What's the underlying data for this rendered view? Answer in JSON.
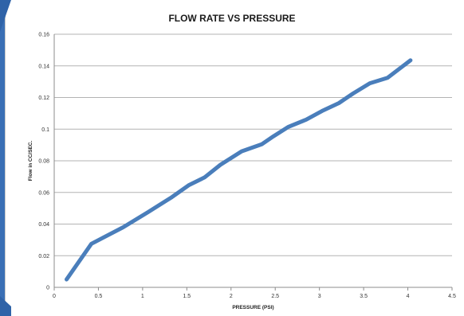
{
  "chart_data": {
    "type": "line",
    "title": "FLOW RATE VS PRESSURE",
    "xlabel": "PRESSURE (PSI)",
    "ylabel": "Flow in CC/SEC.",
    "xlim": [
      0,
      4.5
    ],
    "ylim": [
      0,
      0.16
    ],
    "xticks": [
      "0",
      "0.5",
      "1",
      "1.5",
      "2",
      "2.5",
      "3",
      "3.5",
      "4",
      "4.5"
    ],
    "yticks": [
      "0",
      "0.02",
      "0.04",
      "0.06",
      "0.08",
      "0.1",
      "0.12",
      "0.14",
      "0.16"
    ],
    "grid": "horizontal",
    "legend": "none",
    "series_color": "#4a7ebb",
    "series": [
      {
        "x": [
          0.14,
          0.42,
          0.78,
          1.06,
          1.33,
          1.52,
          1.7,
          1.88,
          2.12,
          2.35,
          2.48,
          2.65,
          2.85,
          3.03,
          3.22,
          3.38,
          3.57,
          3.77,
          4.03
        ],
        "y": [
          0.005,
          0.0275,
          0.038,
          0.0475,
          0.057,
          0.0645,
          0.0695,
          0.0775,
          0.086,
          0.0905,
          0.0955,
          0.1015,
          0.106,
          0.1115,
          0.1165,
          0.1225,
          0.129,
          0.1325,
          0.1435
        ]
      }
    ]
  },
  "colors": {
    "background": "#3a6fb5",
    "gridline": "#b3b3b3",
    "axis": "#8c8c8c"
  }
}
